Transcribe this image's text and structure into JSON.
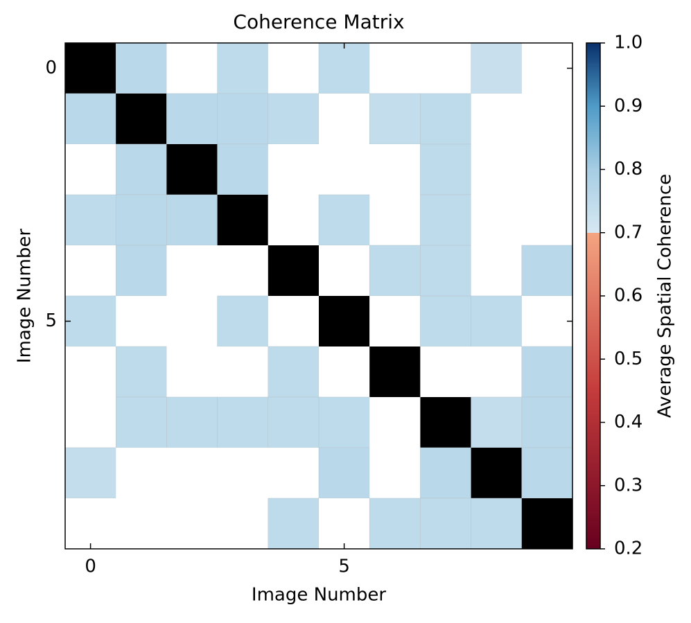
{
  "chart_data": {
    "type": "heatmap",
    "title": "Coherence Matrix",
    "x_label": "Image Number",
    "y_label": "Image Number",
    "colorbar_label": "Average Spatial Coherence",
    "xlim": [
      -0.5,
      9.5
    ],
    "ylim": [
      9.5,
      -0.5
    ],
    "xticks": [
      0,
      5
    ],
    "yticks": [
      0,
      5
    ],
    "clim": [
      0.2,
      1.0
    ],
    "colorbar_ticks": [
      0.2,
      0.3,
      0.4,
      0.5,
      0.6,
      0.7,
      0.8,
      0.9,
      {
        "value": 1.0,
        "label": "1.0"
      }
    ],
    "colormap": [
      {
        "value": 0.2,
        "color": "#67001f"
      },
      {
        "value": 0.45,
        "color": "#c43c3c"
      },
      {
        "value": 0.7,
        "color": "#f4a582"
      },
      {
        "value": 0.7,
        "color": "#d6e8f2"
      },
      {
        "value": 0.8,
        "color": "#a6cde3"
      },
      {
        "value": 0.9,
        "color": "#4f9bc7"
      },
      {
        "value": 1.0,
        "color": "#08306b"
      }
    ],
    "null_color": "#ffffff",
    "diagonal_color": "#000000",
    "values": [
      [
        null,
        0.76,
        null,
        0.75,
        null,
        0.75,
        null,
        null,
        0.73,
        null
      ],
      [
        0.76,
        null,
        0.76,
        0.76,
        0.75,
        null,
        0.74,
        0.75,
        null,
        null
      ],
      [
        null,
        0.76,
        null,
        0.76,
        null,
        null,
        null,
        0.75,
        null,
        null
      ],
      [
        0.75,
        0.76,
        0.76,
        null,
        null,
        0.75,
        null,
        0.75,
        null,
        null
      ],
      [
        null,
        0.76,
        null,
        null,
        null,
        null,
        0.75,
        0.75,
        null,
        0.76
      ],
      [
        0.75,
        null,
        null,
        0.75,
        null,
        null,
        null,
        0.75,
        0.75,
        null
      ],
      [
        null,
        0.75,
        null,
        null,
        0.75,
        null,
        null,
        null,
        null,
        0.76
      ],
      [
        null,
        0.75,
        0.75,
        0.75,
        0.75,
        0.75,
        null,
        null,
        0.74,
        0.76
      ],
      [
        0.74,
        null,
        null,
        null,
        null,
        0.76,
        null,
        0.76,
        null,
        0.76
      ],
      [
        null,
        null,
        null,
        null,
        0.75,
        null,
        0.75,
        0.75,
        0.75,
        null
      ]
    ]
  }
}
